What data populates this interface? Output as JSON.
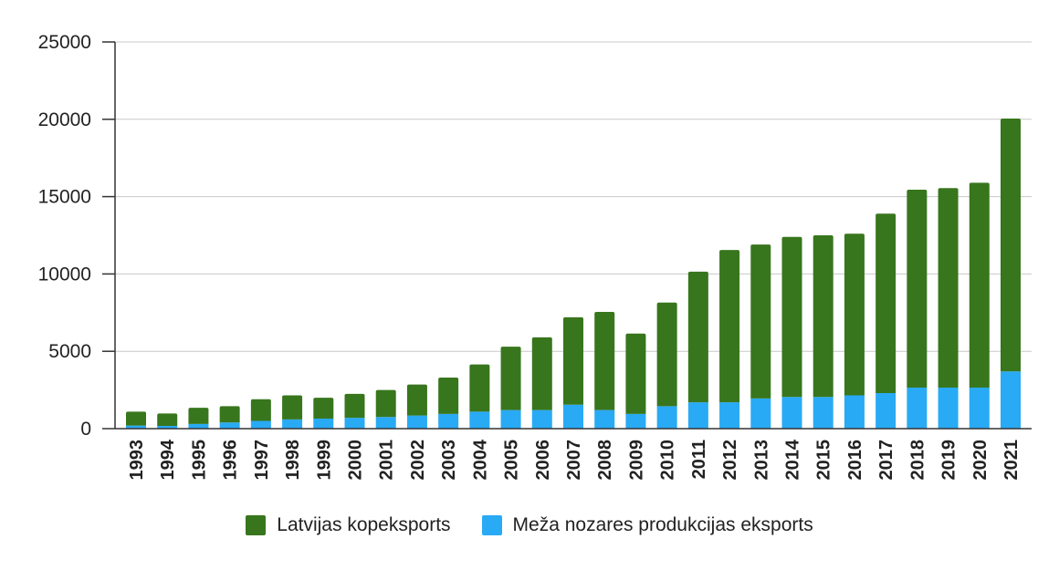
{
  "chart_data": {
    "type": "bar",
    "stacked": true,
    "categories": [
      "1993",
      "1994",
      "1995",
      "1996",
      "1997",
      "1998",
      "1999",
      "2000",
      "2001",
      "2002",
      "2003",
      "2004",
      "2005",
      "2006",
      "2007",
      "2008",
      "2009",
      "2010",
      "2011",
      "2012",
      "2013",
      "2014",
      "2015",
      "2016",
      "2017",
      "2018",
      "2019",
      "2020",
      "2021"
    ],
    "series": [
      {
        "name": "Meža nozares produkcijas eksports",
        "color": "#29aaf4",
        "values": [
          200,
          180,
          300,
          400,
          500,
          600,
          650,
          700,
          750,
          850,
          950,
          1100,
          1200,
          1200,
          1550,
          1200,
          950,
          1450,
          1700,
          1700,
          1950,
          2050,
          2050,
          2150,
          2300,
          2650,
          2650,
          2650,
          3700
        ]
      },
      {
        "name": "Latvijas kopeksports",
        "color": "#38761d",
        "values": [
          900,
          800,
          1050,
          1050,
          1400,
          1550,
          1350,
          1550,
          1750,
          2000,
          2350,
          3050,
          4100,
          4700,
          5650,
          6350,
          5200,
          6700,
          8450,
          9850,
          9950,
          10350,
          10450,
          10450,
          11600,
          12800,
          12900,
          13250,
          16350
        ]
      }
    ],
    "ylim": [
      0,
      25000
    ],
    "yticks": [
      "0",
      "5000",
      "10000",
      "15000",
      "20000",
      "25000"
    ],
    "ytick_values": [
      0,
      5000,
      10000,
      15000,
      20000,
      25000
    ],
    "grid": true,
    "legend_position": "bottom",
    "title": "",
    "xlabel": "",
    "ylabel": ""
  }
}
